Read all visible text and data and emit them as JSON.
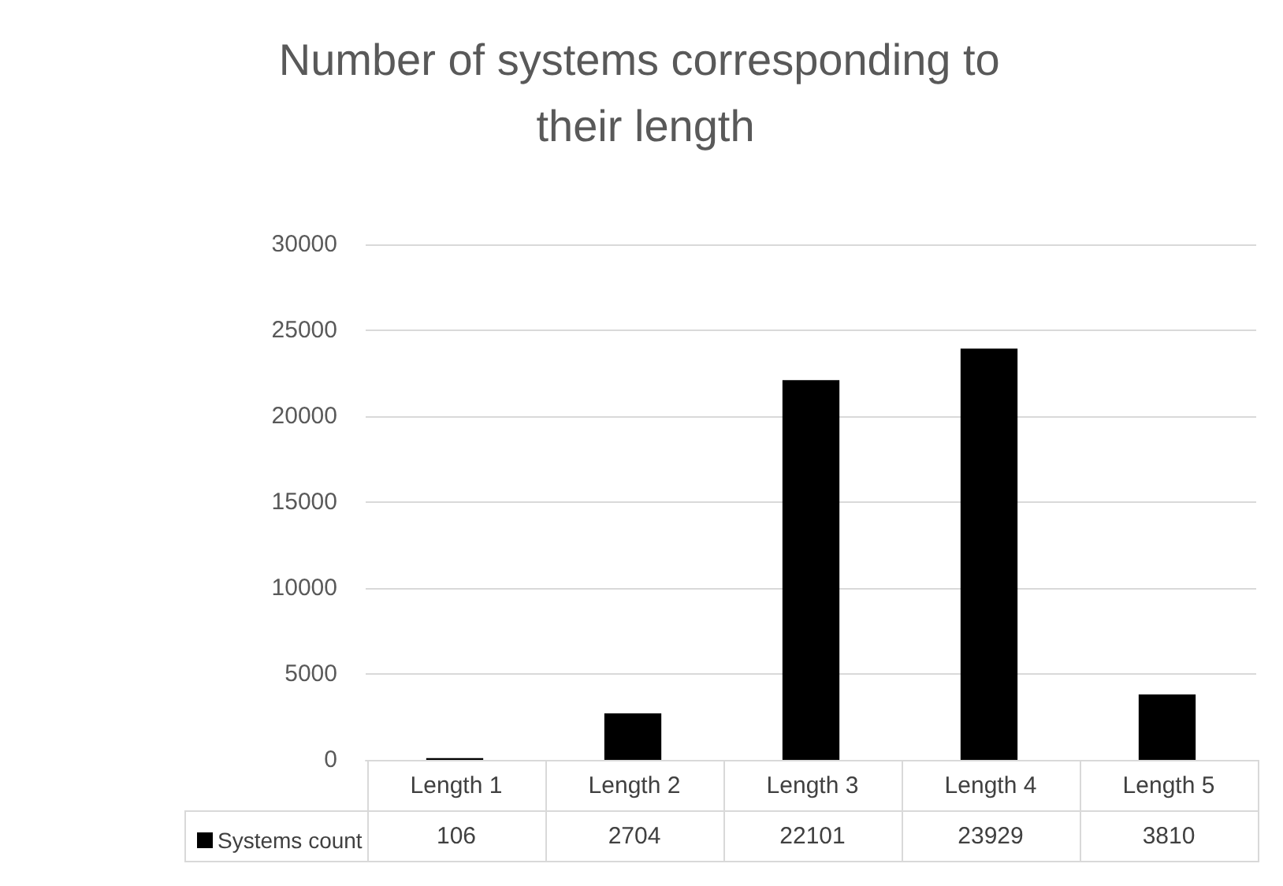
{
  "chart_data": {
    "type": "bar",
    "title": "Number of systems corresponding to their length",
    "categories": [
      "Length 1",
      "Length 2",
      "Length 3",
      "Length 4",
      "Length 5"
    ],
    "series": [
      {
        "name": "Systems count",
        "color": "#000000",
        "values": [
          106,
          2704,
          22101,
          23929,
          3810
        ]
      }
    ],
    "ylim": [
      0,
      30000
    ],
    "yticks": [
      0,
      5000,
      10000,
      15000,
      20000,
      25000,
      30000
    ],
    "grid": "y",
    "legend": "bottom",
    "data_labels": true
  }
}
